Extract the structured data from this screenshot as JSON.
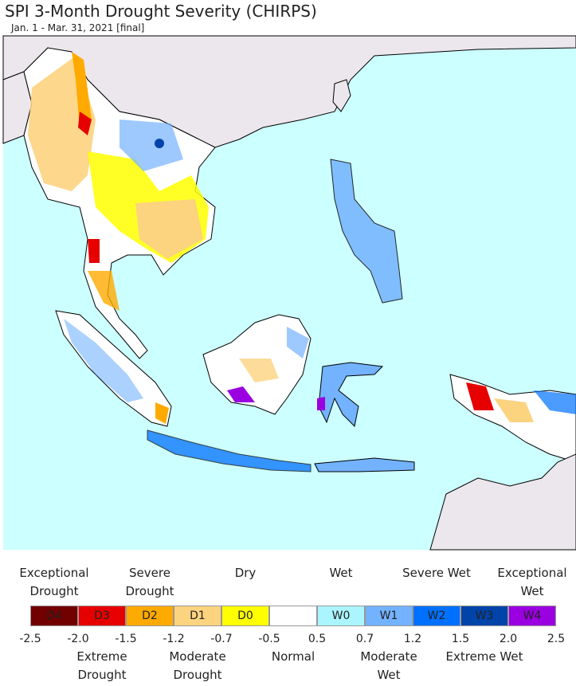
{
  "header": {
    "title": "SPI 3-Month Drought Severity (CHIRPS)",
    "subtitle": "Jan. 1 - Mar. 31, 2021 [final]"
  },
  "legend": {
    "classes": [
      {
        "code": "D4",
        "color": "#730000",
        "description": "Exceptional Drought"
      },
      {
        "code": "D3",
        "color": "#e60000",
        "description": "Extreme Drought"
      },
      {
        "code": "D2",
        "color": "#ffaa00",
        "description": "Severe Drought"
      },
      {
        "code": "D1",
        "color": "#fcd37f",
        "description": "Moderate Drought"
      },
      {
        "code": "D0",
        "color": "#ffff00",
        "description": "Dry"
      },
      {
        "color": "#ffffff",
        "description": "Normal"
      },
      {
        "code": "W0",
        "color": "#aaf5ff",
        "description": "Wet"
      },
      {
        "code": "W1",
        "color": "#73b2ff",
        "description": "Moderate Wet"
      },
      {
        "code": "W2",
        "color": "#0070ff",
        "description": "Severe Wet"
      },
      {
        "code": "W3",
        "color": "#0044aa",
        "description": "Extreme Wet"
      },
      {
        "code": "W4",
        "color": "#9a00e0",
        "description": "Exceptional Wet"
      }
    ],
    "boundaries": [
      -2.5,
      {
        "value": -2,
        "label": "-2.0"
      },
      -1.5,
      -1.2,
      -0.7,
      -0.5,
      0.5,
      0.7,
      1.2,
      1.5,
      {
        "value": 2,
        "label": "2.0"
      },
      2.5
    ]
  }
}
